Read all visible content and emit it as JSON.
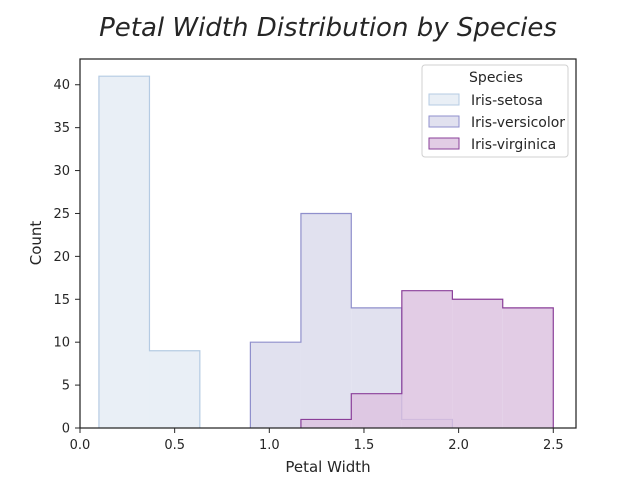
{
  "chart_data": {
    "type": "histogram",
    "title": "Petal Width Distribution by Species",
    "xlabel": "Petal Width",
    "ylabel": "Count",
    "xlim": [
      0.0,
      2.62
    ],
    "ylim": [
      0,
      43
    ],
    "xticks": [
      0.0,
      0.5,
      1.0,
      1.5,
      2.0,
      2.5
    ],
    "yticks": [
      0,
      5,
      10,
      15,
      20,
      25,
      30,
      35,
      40
    ],
    "xtick_labels": [
      "0.0",
      "0.5",
      "1.0",
      "1.5",
      "2.0",
      "2.5"
    ],
    "ytick_labels": [
      "0",
      "5",
      "10",
      "15",
      "20",
      "25",
      "30",
      "35",
      "40"
    ],
    "grid": false,
    "legend": {
      "title": "Species",
      "placement": "top-right"
    },
    "series": [
      {
        "name": "Iris-setosa",
        "fill": "#e9eff6",
        "stroke": "#b5cbe3",
        "bins": [
          {
            "x0": 0.1,
            "x1": 0.367,
            "count": 41
          },
          {
            "x0": 0.367,
            "x1": 0.633,
            "count": 9
          }
        ]
      },
      {
        "name": "Iris-versicolor",
        "fill": "#e1e1ef",
        "stroke": "#8f8fcc",
        "bins": [
          {
            "x0": 0.9,
            "x1": 1.167,
            "count": 10
          },
          {
            "x0": 1.167,
            "x1": 1.433,
            "count": 25
          },
          {
            "x0": 1.433,
            "x1": 1.7,
            "count": 14
          },
          {
            "x0": 1.7,
            "x1": 1.967,
            "count": 1
          }
        ]
      },
      {
        "name": "Iris-virginica",
        "fill": "#ddc3e0",
        "fill_opacity": 0.85,
        "stroke": "#8a3f99",
        "bins": [
          {
            "x0": 1.167,
            "x1": 1.433,
            "count": 1
          },
          {
            "x0": 1.433,
            "x1": 1.7,
            "count": 4
          },
          {
            "x0": 1.7,
            "x1": 1.967,
            "count": 16
          },
          {
            "x0": 1.967,
            "x1": 2.233,
            "count": 15
          },
          {
            "x0": 2.233,
            "x1": 2.5,
            "count": 14
          }
        ]
      }
    ]
  }
}
